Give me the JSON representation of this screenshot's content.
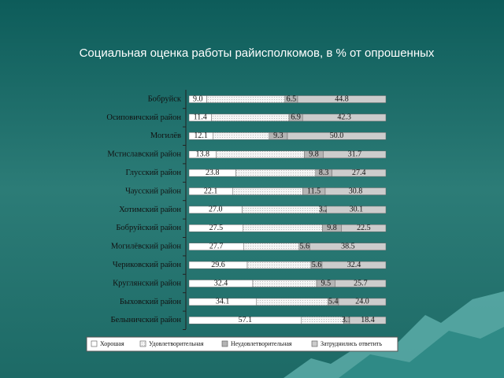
{
  "chart_data": {
    "type": "stacked-bar-horizontal",
    "title": "Социальная оценка работы райисполкомов, в % от опрошенных",
    "categories": [
      "Бобруйск",
      "Осиповичский район",
      "Могилёв",
      "Мстиславский район",
      "Глусский район",
      "Чаусский район",
      "Хотимский район",
      "Бобруйский район",
      "Могилёвский район",
      "Чериковский район",
      "Круглянский район",
      "Быховский район",
      "Белыничский район"
    ],
    "xlim": [
      0,
      100
    ],
    "series": [
      {
        "name": "Хорошая",
        "color": "#ffffff",
        "values": [
          9.0,
          11.4,
          12.1,
          13.8,
          23.8,
          22.1,
          27.0,
          27.5,
          27.7,
          29.6,
          32.4,
          34.1,
          57.1
        ],
        "value_labels": [
          "9.0",
          "11.4",
          "12.1",
          "13.8",
          "23.8",
          "22.1",
          "27.0",
          "27.5",
          "27.7",
          "29.6",
          "32.4",
          "34.1",
          "57.1"
        ]
      },
      {
        "name": "Удовлетворительная",
        "color": "#ececec",
        "values": [
          39.7,
          39.4,
          28.6,
          44.7,
          40.5,
          35.6,
          39.7,
          40.2,
          28.2,
          32.4,
          32.4,
          36.5,
          21.4
        ]
      },
      {
        "name": "Неудовлетворительная",
        "color": "#b4b4b4",
        "values": [
          6.5,
          6.9,
          9.3,
          9.8,
          8.3,
          11.5,
          3.2,
          9.8,
          5.6,
          5.6,
          9.5,
          5.4,
          3.1
        ],
        "value_labels": [
          "6.5",
          "6.9",
          "9.3",
          "9.8",
          "8.3",
          "11.5",
          "3.2",
          "9.8",
          "5.6",
          "5.6",
          "9.5",
          "5.4",
          "3.1"
        ]
      },
      {
        "name": "Затруднились ответить",
        "color": "#cccccc",
        "values": [
          44.8,
          42.3,
          50.0,
          31.7,
          27.4,
          30.8,
          30.1,
          22.5,
          38.5,
          32.4,
          25.7,
          24.0,
          18.4
        ],
        "value_labels": [
          "44.8",
          "42.3",
          "50.0",
          "31.7",
          "27.4",
          "30.8",
          "30.1",
          "22.5",
          "38.5",
          "32.4",
          "25.7",
          "24.0",
          "18.4"
        ]
      }
    ]
  }
}
